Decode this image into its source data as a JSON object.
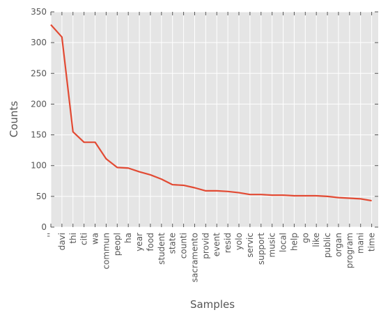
{
  "chart_data": {
    "type": "line",
    "title": "",
    "xlabel": "Samples",
    "ylabel": "Counts",
    "ylim": [
      0,
      350
    ],
    "yticks": [
      0,
      50,
      100,
      150,
      200,
      250,
      300,
      350
    ],
    "grid": true,
    "background_color": "#e5e5e5",
    "grid_color": "#ffffff",
    "line_color": "#e24a33",
    "categories": [
      "''",
      "davi",
      "thi",
      "citi",
      "wa",
      "commun",
      "peopl",
      "ha",
      "year",
      "food",
      "student",
      "state",
      "counti",
      "sacramento",
      "provid",
      "event",
      "resid",
      "yolo",
      "servic",
      "support",
      "music",
      "local",
      "help",
      "go",
      "like",
      "public",
      "organ",
      "program",
      "mani",
      "time"
    ],
    "values": [
      329,
      309,
      155,
      138,
      138,
      111,
      97,
      96,
      90,
      85,
      78,
      69,
      68,
      64,
      59,
      59,
      58,
      56,
      53,
      53,
      52,
      52,
      51,
      51,
      51,
      50,
      48,
      47,
      46,
      43
    ]
  }
}
